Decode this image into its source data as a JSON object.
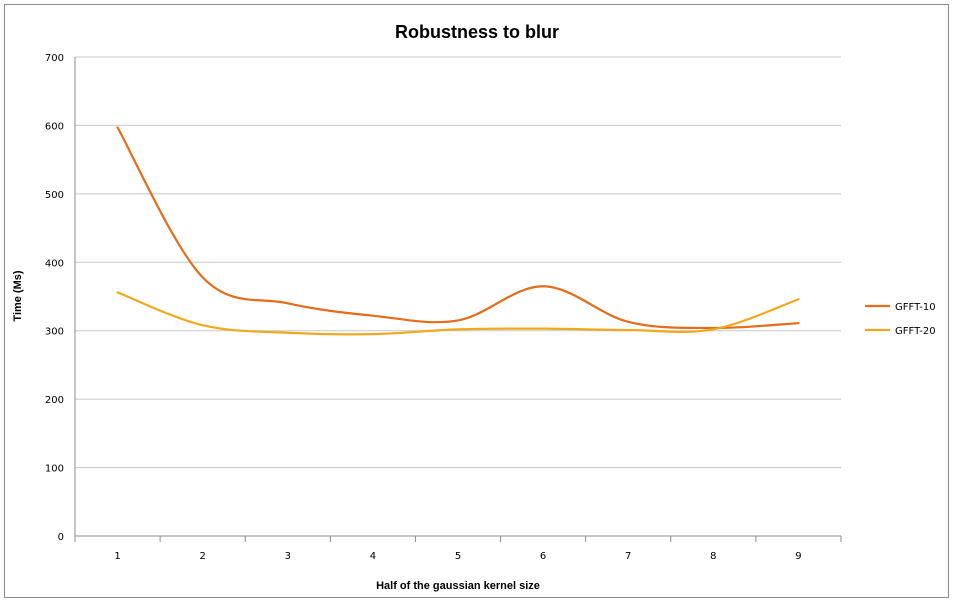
{
  "chart_data": {
    "type": "line",
    "title": "Robustness to blur",
    "xlabel": "Half of the gaussian kernel size",
    "ylabel": "Time (Ms)",
    "x": [
      1,
      2,
      3,
      4,
      5,
      6,
      7,
      8,
      9
    ],
    "ylim": [
      0,
      700
    ],
    "yticks": [
      0,
      100,
      200,
      300,
      400,
      500,
      600,
      700
    ],
    "grid": true,
    "legend_position": "right",
    "series": [
      {
        "name": "GFFT-10",
        "color": "#e46c1a",
        "values": [
          597,
          378,
          340,
          322,
          315,
          365,
          313,
          304,
          311
        ]
      },
      {
        "name": "GFFT-20",
        "color": "#f0a81e",
        "values": [
          356,
          308,
          297,
          295,
          302,
          303,
          301,
          302,
          346
        ]
      }
    ]
  }
}
